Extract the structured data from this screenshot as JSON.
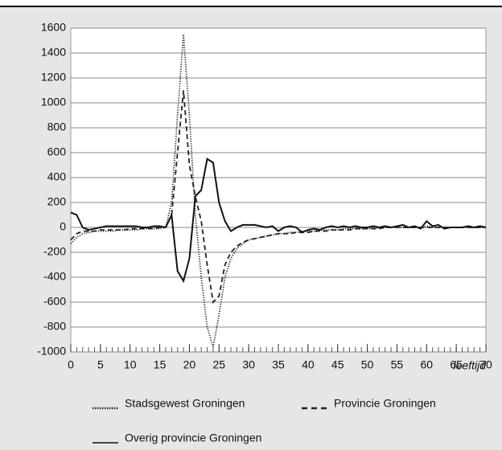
{
  "chart_data": {
    "type": "line",
    "x_label": "leeftijd",
    "x": [
      0,
      1,
      2,
      3,
      4,
      5,
      6,
      7,
      8,
      9,
      10,
      11,
      12,
      13,
      14,
      15,
      16,
      17,
      18,
      19,
      20,
      21,
      22,
      23,
      24,
      25,
      26,
      27,
      28,
      29,
      30,
      31,
      32,
      33,
      34,
      35,
      36,
      37,
      38,
      39,
      40,
      41,
      42,
      43,
      44,
      45,
      46,
      47,
      48,
      49,
      50,
      51,
      52,
      53,
      54,
      55,
      56,
      57,
      58,
      59,
      60,
      61,
      62,
      63,
      64,
      65,
      66,
      67,
      68,
      69,
      70
    ],
    "series": [
      {
        "name": "Stadsgewest Groningen",
        "color": "#222222",
        "dash": "dotted",
        "values": [
          -130,
          -80,
          -50,
          -40,
          -30,
          -30,
          -30,
          -30,
          -20,
          -20,
          -20,
          -20,
          -10,
          -10,
          -10,
          -10,
          0,
          200,
          900,
          1550,
          900,
          100,
          -400,
          -800,
          -960,
          -700,
          -400,
          -250,
          -170,
          -130,
          -100,
          -90,
          -80,
          -70,
          -60,
          -50,
          -50,
          -40,
          -40,
          -30,
          -30,
          -30,
          -20,
          -20,
          -20,
          -20,
          -10,
          -10,
          -10,
          -10,
          -10,
          -10,
          0,
          0,
          0,
          0,
          0,
          0,
          0,
          0,
          10,
          0,
          0,
          0,
          0,
          0,
          0,
          0,
          0,
          0,
          0
        ]
      },
      {
        "name": "Provincie Groningen",
        "color": "#222222",
        "dash": "dashed",
        "values": [
          -100,
          -50,
          -30,
          -30,
          -30,
          -20,
          -20,
          -20,
          -20,
          -20,
          -10,
          -10,
          -10,
          -10,
          -10,
          0,
          0,
          100,
          600,
          1100,
          500,
          250,
          50,
          -300,
          -600,
          -550,
          -300,
          -200,
          -150,
          -120,
          -100,
          -90,
          -80,
          -70,
          -60,
          -50,
          -50,
          -50,
          -40,
          -40,
          -40,
          -30,
          -30,
          -30,
          -20,
          -20,
          -20,
          -20,
          -10,
          -10,
          -10,
          -10,
          -10,
          0,
          0,
          0,
          0,
          0,
          0,
          0,
          0,
          0,
          0,
          0,
          0,
          0,
          0,
          0,
          0,
          0,
          0
        ]
      },
      {
        "name": "Overig provincie Groningen",
        "color": "#111111",
        "dash": "solid",
        "values": [
          120,
          100,
          0,
          -20,
          -10,
          0,
          10,
          10,
          10,
          10,
          10,
          10,
          0,
          0,
          10,
          10,
          0,
          100,
          -350,
          -430,
          -250,
          250,
          300,
          550,
          520,
          200,
          50,
          -30,
          0,
          20,
          20,
          20,
          10,
          0,
          10,
          -30,
          0,
          10,
          0,
          -40,
          -20,
          -10,
          -20,
          0,
          10,
          0,
          10,
          0,
          10,
          0,
          0,
          10,
          0,
          10,
          0,
          10,
          20,
          0,
          10,
          -10,
          50,
          10,
          20,
          -10,
          0,
          0,
          0,
          10,
          0,
          10,
          0
        ]
      }
    ],
    "xlim": [
      0,
      70
    ],
    "xticks": [
      0,
      5,
      10,
      15,
      20,
      25,
      30,
      35,
      40,
      45,
      50,
      55,
      60,
      65,
      70
    ],
    "ylim": [
      -1000,
      1600
    ],
    "yticks": [
      -1000,
      -800,
      -600,
      -400,
      -200,
      0,
      200,
      400,
      600,
      800,
      1000,
      1200,
      1400,
      1600
    ],
    "grid": true
  }
}
